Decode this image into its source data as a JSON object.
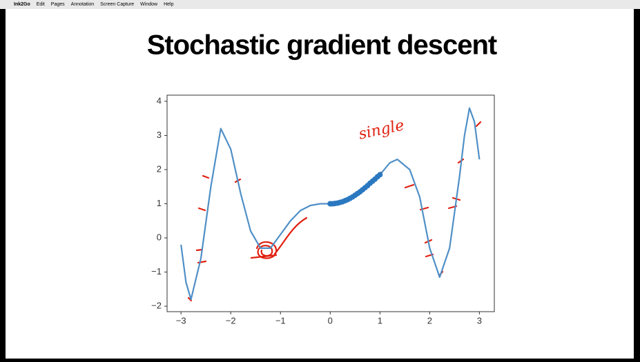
{
  "menu": {
    "app": "Ink2Go",
    "items": [
      "Edit",
      "Pages",
      "Annotation",
      "Screen Capture",
      "Window",
      "Help"
    ]
  },
  "chart_data": {
    "type": "line",
    "title": "Stochastic  gradient descent",
    "annotation": "single",
    "series": [
      {
        "color": "#4f8fc6",
        "x": [
          -3,
          -2.9,
          -2.8,
          -2.6,
          -2.4,
          -2.2,
          -2.0,
          -1.8,
          -1.6,
          -1.4,
          -1.2,
          -1.0,
          -0.8,
          -0.6,
          -0.4,
          -0.2,
          0,
          0.2,
          0.4,
          0.6,
          0.8,
          1.0,
          1.2,
          1.35,
          1.6,
          1.8,
          2.0,
          2.2,
          2.4,
          2.6,
          2.7,
          2.8,
          2.9,
          3.0
        ],
        "values": [
          -0.2,
          -1.3,
          -1.8,
          -0.6,
          1.5,
          3.2,
          2.6,
          1.3,
          0.2,
          -0.3,
          -0.3,
          0.1,
          0.5,
          0.8,
          0.95,
          1.0,
          1.0,
          1.05,
          1.18,
          1.35,
          1.6,
          1.85,
          2.2,
          2.3,
          2.0,
          1.2,
          -0.3,
          -1.15,
          -0.3,
          1.8,
          3.0,
          3.8,
          3.4,
          2.3
        ]
      },
      {
        "type": "scatter",
        "color": "#2a78c0",
        "x": [
          0,
          0.05,
          0.1,
          0.15,
          0.2,
          0.25,
          0.3,
          0.35,
          0.4,
          0.45,
          0.5,
          0.55,
          0.6,
          0.65,
          0.7,
          0.75,
          0.8,
          0.85,
          0.9,
          0.95,
          1.0
        ],
        "values": [
          1.0,
          1.0,
          1.01,
          1.02,
          1.04,
          1.06,
          1.09,
          1.12,
          1.16,
          1.2,
          1.25,
          1.3,
          1.35,
          1.41,
          1.47,
          1.53,
          1.6,
          1.66,
          1.72,
          1.79,
          1.85
        ]
      }
    ],
    "xlim": [
      -3.28,
      3.3
    ],
    "ylim": [
      -2.16,
      4.18
    ],
    "xticks": [
      {
        "value": -3,
        "label": "−3"
      },
      {
        "value": -2,
        "label": "−2"
      },
      {
        "value": -1,
        "label": "−1"
      },
      0,
      1,
      2,
      3
    ],
    "yticks": [
      {
        "value": -2,
        "label": "−2"
      },
      {
        "value": -1,
        "label": "−1"
      },
      0,
      1,
      2,
      3,
      4
    ]
  }
}
